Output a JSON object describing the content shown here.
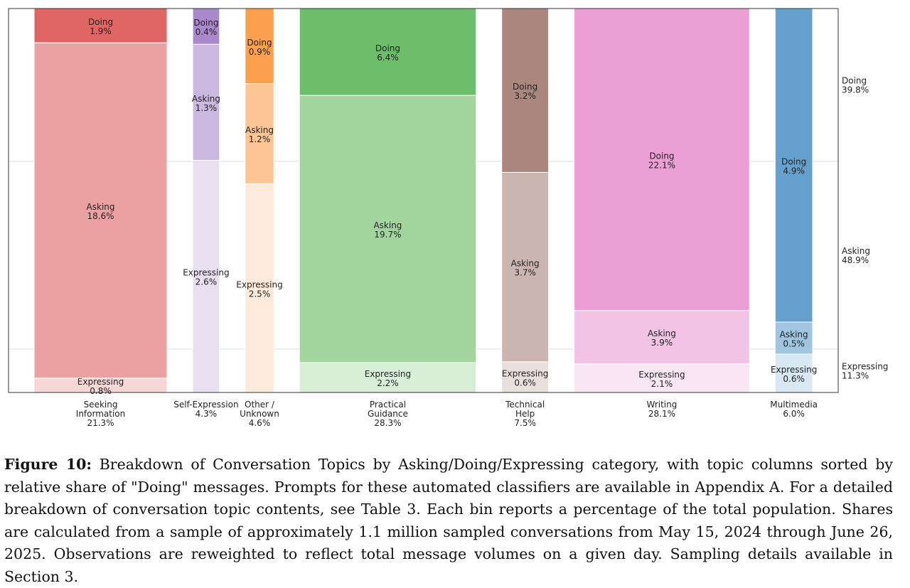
{
  "chart_data": {
    "type": "mosaic",
    "row_order": [
      "Expressing",
      "Asking",
      "Doing"
    ],
    "columns": [
      {
        "label": [
          "Seeking",
          "Information"
        ],
        "total": "21.3%",
        "share": 21.3,
        "segments": {
          "Doing": {
            "label": "Doing",
            "value": "1.9%",
            "v": 1.9
          },
          "Asking": {
            "label": "Asking",
            "value": "18.6%",
            "v": 18.6
          },
          "Expressing": {
            "label": "Expressing",
            "value": "0.8%",
            "v": 0.8
          }
        },
        "colors": {
          "Doing": "#e06666",
          "Asking": "#eba1a1",
          "Expressing": "#f7d6d6"
        }
      },
      {
        "label": [
          "Self-Expression"
        ],
        "total": "4.3%",
        "share": 4.3,
        "segments": {
          "Doing": {
            "label": "Doing",
            "value": "0.4%",
            "v": 0.4
          },
          "Asking": {
            "label": "Asking",
            "value": "1.3%",
            "v": 1.3
          },
          "Expressing": {
            "label": "Expressing",
            "value": "2.6%",
            "v": 2.6
          }
        },
        "colors": {
          "Doing": "#a988cc",
          "Asking": "#ccb7e1",
          "Expressing": "#e8e0f1"
        }
      },
      {
        "label": [
          "Other /",
          "Unknown"
        ],
        "total": "4.6%",
        "share": 4.6,
        "segments": {
          "Doing": {
            "label": "Doing",
            "value": "0.9%",
            "v": 0.9
          },
          "Asking": {
            "label": "Asking",
            "value": "1.2%",
            "v": 1.2
          },
          "Expressing": {
            "label": "Expressing",
            "value": "2.5%",
            "v": 2.5
          }
        },
        "colors": {
          "Doing": "#fba04e",
          "Asking": "#fdc594",
          "Expressing": "#feeadb"
        }
      },
      {
        "label": [
          "Practical",
          "Guidance"
        ],
        "total": "28.3%",
        "share": 28.3,
        "segments": {
          "Doing": {
            "label": "Doing",
            "value": "6.4%",
            "v": 6.4
          },
          "Asking": {
            "label": "Asking",
            "value": "19.7%",
            "v": 19.7
          },
          "Expressing": {
            "label": "Expressing",
            "value": "2.2%",
            "v": 2.2
          }
        },
        "colors": {
          "Doing": "#6cbe6b",
          "Asking": "#a3d59f",
          "Expressing": "#d9eed7"
        }
      },
      {
        "label": [
          "Technical",
          "Help"
        ],
        "total": "7.5%",
        "share": 7.5,
        "segments": {
          "Doing": {
            "label": "Doing",
            "value": "3.2%",
            "v": 3.2
          },
          "Asking": {
            "label": "Asking",
            "value": "3.7%",
            "v": 3.7
          },
          "Expressing": {
            "label": "Expressing",
            "value": "0.6%",
            "v": 0.6
          }
        },
        "colors": {
          "Doing": "#ac877f",
          "Asking": "#cbb5b1",
          "Expressing": "#e9dfdd"
        }
      },
      {
        "label": [
          "Writing"
        ],
        "total": "28.1%",
        "share": 28.1,
        "segments": {
          "Doing": {
            "label": "Doing",
            "value": "22.1%",
            "v": 22.1
          },
          "Asking": {
            "label": "Asking",
            "value": "3.9%",
            "v": 3.9
          },
          "Expressing": {
            "label": "Expressing",
            "value": "2.1%",
            "v": 2.1
          }
        },
        "colors": {
          "Doing": "#eb9fd5",
          "Asking": "#f2c3e5",
          "Expressing": "#f9e6f3"
        }
      },
      {
        "label": [
          "Multimedia"
        ],
        "total": "6.0%",
        "share": 6.0,
        "segments": {
          "Doing": {
            "label": "Doing",
            "value": "4.9%",
            "v": 4.9
          },
          "Asking": {
            "label": "Asking",
            "value": "0.5%",
            "v": 0.5
          },
          "Expressing": {
            "label": "Expressing",
            "value": "0.6%",
            "v": 0.6
          }
        },
        "colors": {
          "Doing": "#64a1ce",
          "Asking": "#a0c5e1",
          "Expressing": "#d7e7f3"
        }
      }
    ],
    "overall": [
      {
        "label": "Doing",
        "value": "39.8%",
        "v": 39.8
      },
      {
        "label": "Asking",
        "value": "48.9%",
        "v": 48.9
      },
      {
        "label": "Expressing",
        "value": "11.3%",
        "v": 11.3
      }
    ],
    "colors": {
      "frame": "#333333",
      "guide": "#dddddd",
      "separator": "#ffffff"
    }
  },
  "caption": {
    "label": "Figure 10:",
    "text": "Breakdown of Conversation Topics by Asking/Doing/Expressing category, with topic columns sorted by relative share of \"Doing\" messages. Prompts for these automated classifiers are available in Appendix A. For a detailed breakdown of conversation topic contents, see Table 3. Each bin reports a percentage of the total population. Shares are calculated from a sample of approximately 1.1 million sampled conversations from May 15, 2024 through June 26, 2025. Observations are reweighted to reflect total message volumes on a given day. Sampling details available in Section 3."
  }
}
